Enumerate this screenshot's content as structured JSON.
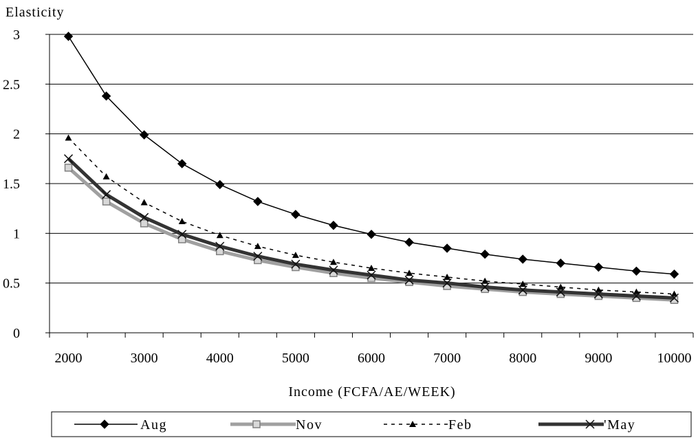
{
  "chart_data": {
    "type": "line",
    "ylabel": "Elasticity",
    "xlabel": "Income (FCFA/AE/WEEK)",
    "xlim": [
      2000,
      10000
    ],
    "ylim": [
      0,
      3
    ],
    "x_ticks": [
      "2000",
      "3000",
      "4000",
      "5000",
      "6000",
      "7000",
      "8000",
      "9000",
      "10000"
    ],
    "y_ticks": [
      "0",
      "0.5",
      "1",
      "1.5",
      "2",
      "2.5",
      "3"
    ],
    "grid": "horizontal",
    "legend_position": "bottom",
    "x": [
      2000,
      2500,
      3000,
      3500,
      4000,
      4500,
      5000,
      5500,
      6000,
      6500,
      7000,
      7500,
      8000,
      8500,
      9000,
      9500,
      10000
    ],
    "series": [
      {
        "name": "Aug",
        "color": "#000000",
        "marker": "diamond",
        "line": "solid-thin",
        "values": [
          2.98,
          2.38,
          1.99,
          1.7,
          1.49,
          1.32,
          1.19,
          1.08,
          0.99,
          0.91,
          0.85,
          0.79,
          0.74,
          0.7,
          0.66,
          0.62,
          0.59
        ]
      },
      {
        "name": "Nov",
        "color": "#a0a0a0",
        "marker": "square",
        "line": "solid-thick",
        "values": [
          1.66,
          1.32,
          1.1,
          0.94,
          0.82,
          0.73,
          0.66,
          0.6,
          0.55,
          0.51,
          0.47,
          0.44,
          0.41,
          0.39,
          0.37,
          0.35,
          0.33
        ]
      },
      {
        "name": "Feb",
        "color": "#000000",
        "marker": "triangle",
        "line": "dashed",
        "values": [
          1.96,
          1.57,
          1.31,
          1.12,
          0.98,
          0.87,
          0.78,
          0.71,
          0.65,
          0.6,
          0.56,
          0.52,
          0.49,
          0.46,
          0.43,
          0.41,
          0.39
        ]
      },
      {
        "name": "May",
        "legend_label": "'May",
        "color": "#333333",
        "marker": "x",
        "line": "solid-thick",
        "values": [
          1.75,
          1.39,
          1.16,
          0.99,
          0.87,
          0.77,
          0.69,
          0.63,
          0.58,
          0.53,
          0.5,
          0.46,
          0.43,
          0.41,
          0.39,
          0.37,
          0.35
        ]
      }
    ]
  }
}
